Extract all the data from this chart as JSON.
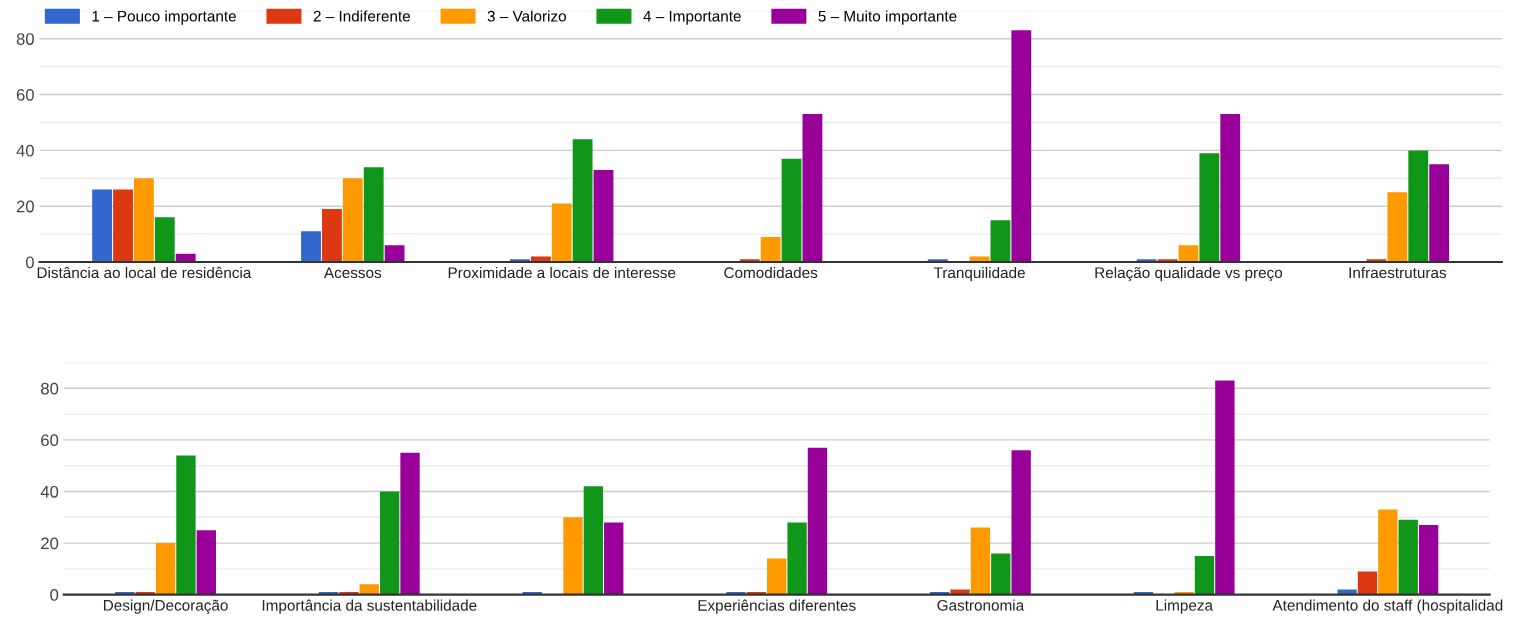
{
  "chart_data": [
    {
      "type": "bar",
      "categories": [
        "Distância ao local de residência",
        "Acessos",
        "Proximidade a locais de interesse",
        "Comodidades",
        "Tranquilidade",
        "Relação qualidade vs preço",
        "Infraestruturas"
      ],
      "series": [
        {
          "name": "1 – Pouco importante",
          "color": "#3366cc",
          "values": [
            26,
            11,
            1,
            0,
            1,
            1,
            0
          ]
        },
        {
          "name": "2 – Indiferente",
          "color": "#dc3912",
          "values": [
            26,
            19,
            2,
            1,
            0,
            1,
            1
          ]
        },
        {
          "name": "3 – Valorizo",
          "color": "#ff9900",
          "values": [
            30,
            30,
            21,
            9,
            2,
            6,
            25
          ]
        },
        {
          "name": "4 – Importante",
          "color": "#109618",
          "values": [
            16,
            34,
            44,
            37,
            15,
            39,
            40
          ]
        },
        {
          "name": "5 – Muito importante",
          "color": "#990099",
          "values": [
            3,
            6,
            33,
            53,
            83,
            53,
            35
          ]
        }
      ],
      "ylim": [
        0,
        90
      ],
      "yticks": [
        0,
        {
          "value": 10,
          "label": null
        },
        20,
        {
          "value": 30,
          "label": null
        },
        40,
        {
          "value": 50,
          "label": null
        },
        60,
        {
          "value": 70,
          "label": null
        },
        80,
        {
          "value": 90,
          "label": null
        }
      ],
      "grid": "y",
      "legend": "top left"
    },
    {
      "type": "bar",
      "categories": [
        "Design/Decoração",
        "Importância da sustentabilidade",
        null,
        "Experiências diferentes",
        "Gastronomia",
        "Limpeza",
        "Atendimento do staff (hospitalidad"
      ],
      "series": [
        {
          "color": "#3366cc",
          "values": [
            1,
            1,
            1,
            1,
            1,
            1,
            2
          ]
        },
        {
          "color": "#dc3912",
          "values": [
            1,
            1,
            0,
            1,
            2,
            0,
            9
          ]
        },
        {
          "color": "#ff9900",
          "values": [
            20,
            4,
            30,
            14,
            26,
            1,
            33
          ]
        },
        {
          "color": "#109618",
          "values": [
            54,
            40,
            42,
            28,
            16,
            15,
            29
          ]
        },
        {
          "color": "#990099",
          "values": [
            25,
            55,
            28,
            57,
            56,
            83,
            27
          ]
        }
      ],
      "ylim": [
        0,
        90
      ],
      "yticks": [
        0,
        {
          "value": 10,
          "label": null
        },
        20,
        {
          "value": 30,
          "label": null
        },
        40,
        {
          "value": 50,
          "label": null
        },
        60,
        {
          "value": 70,
          "label": null
        },
        80,
        {
          "value": 90,
          "label": null
        }
      ],
      "grid": "y",
      "legend": false
    }
  ]
}
